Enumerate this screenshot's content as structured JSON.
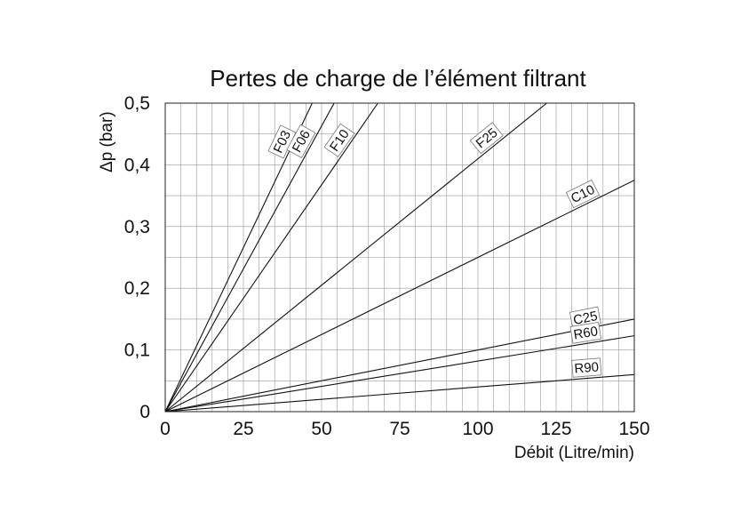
{
  "chart_data": {
    "type": "line",
    "title": "Pertes de charge de l’élément filtrant",
    "xlabel": "Débit (Litre/min)",
    "ylabel": "Δp (bar)",
    "xlim": [
      0,
      150
    ],
    "ylim": [
      0,
      0.5
    ],
    "x_ticks": [
      0,
      25,
      50,
      75,
      100,
      125,
      150
    ],
    "x_tick_labels": [
      "0",
      "25",
      "50",
      "75",
      "100",
      "125",
      "150"
    ],
    "y_ticks": [
      0,
      0.1,
      0.2,
      0.3,
      0.4,
      0.5
    ],
    "y_tick_labels": [
      "0",
      "0,1",
      "0,2",
      "0,3",
      "0,4",
      "0,5"
    ],
    "grid": true,
    "series": [
      {
        "name": "F03",
        "x": [
          0,
          47
        ],
        "y": [
          0,
          0.5
        ]
      },
      {
        "name": "F06",
        "x": [
          0,
          54
        ],
        "y": [
          0,
          0.5
        ]
      },
      {
        "name": "F10",
        "x": [
          0,
          68
        ],
        "y": [
          0,
          0.5
        ]
      },
      {
        "name": "F25",
        "x": [
          0,
          122
        ],
        "y": [
          0,
          0.5
        ]
      },
      {
        "name": "C10",
        "x": [
          0,
          150
        ],
        "y": [
          0,
          0.375
        ]
      },
      {
        "name": "C25",
        "x": [
          0,
          150
        ],
        "y": [
          0,
          0.15
        ]
      },
      {
        "name": "R60",
        "x": [
          0,
          150
        ],
        "y": [
          0,
          0.123
        ]
      },
      {
        "name": "R90",
        "x": [
          0,
          150
        ],
        "y": [
          0,
          0.06
        ]
      }
    ]
  }
}
